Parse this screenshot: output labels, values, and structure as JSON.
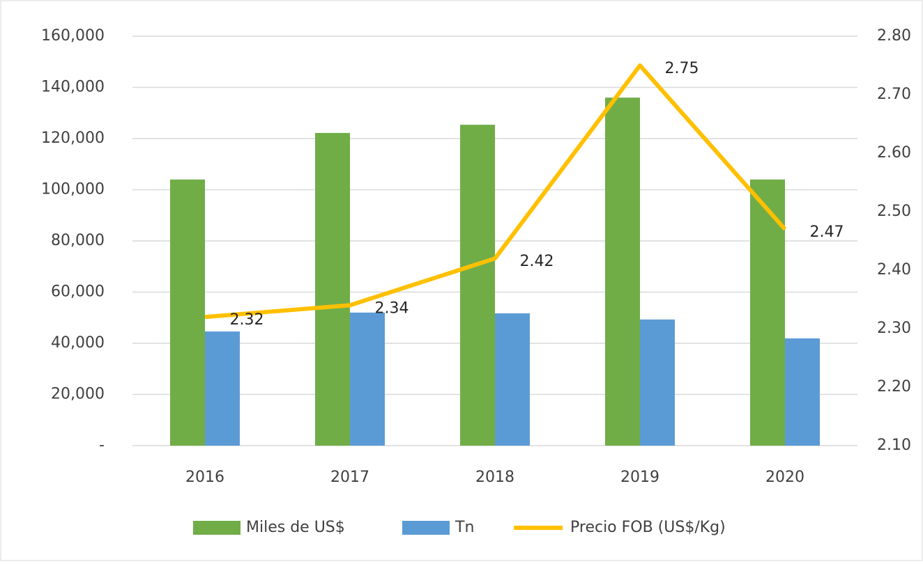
{
  "chart_data": {
    "type": "bar",
    "categories": [
      "2016",
      "2017",
      "2018",
      "2019",
      "2020"
    ],
    "series": [
      {
        "name": "Miles de US$",
        "color": "#70ad47",
        "type": "bar",
        "values": [
          104000,
          122200,
          125400,
          136000,
          104000
        ]
      },
      {
        "name": "Tn",
        "color": "#5b9bd5",
        "type": "bar",
        "values": [
          44600,
          52000,
          51700,
          49300,
          41900
        ]
      },
      {
        "name": "Precio FOB (US$/Kg)",
        "color": "#ffc000",
        "type": "line",
        "axis": "y2",
        "values": [
          2.32,
          2.34,
          2.42,
          2.75,
          2.47
        ]
      }
    ],
    "ylim": [
      0,
      160000
    ],
    "yticks": [
      {
        "value": 0,
        "label": "-"
      },
      {
        "value": 20000,
        "label": "20,000"
      },
      {
        "value": 40000,
        "label": "40,000"
      },
      {
        "value": 60000,
        "label": "60,000"
      },
      {
        "value": 80000,
        "label": "80,000"
      },
      {
        "value": 100000,
        "label": "100,000"
      },
      {
        "value": 120000,
        "label": "120,000"
      },
      {
        "value": 140000,
        "label": "140,000"
      },
      {
        "value": 160000,
        "label": "160,000"
      }
    ],
    "y2lim": [
      2.1,
      2.8
    ],
    "y2ticks": [
      {
        "value": 2.1,
        "label": "2.10"
      },
      {
        "value": 2.2,
        "label": "2.20"
      },
      {
        "value": 2.3,
        "label": "2.30"
      },
      {
        "value": 2.4,
        "label": "2.40"
      },
      {
        "value": 2.5,
        "label": "2.50"
      },
      {
        "value": 2.6,
        "label": "2.60"
      },
      {
        "value": 2.7,
        "label": "2.70"
      },
      {
        "value": 2.8,
        "label": "2.80"
      }
    ],
    "grid": true,
    "legend": "bottom"
  }
}
